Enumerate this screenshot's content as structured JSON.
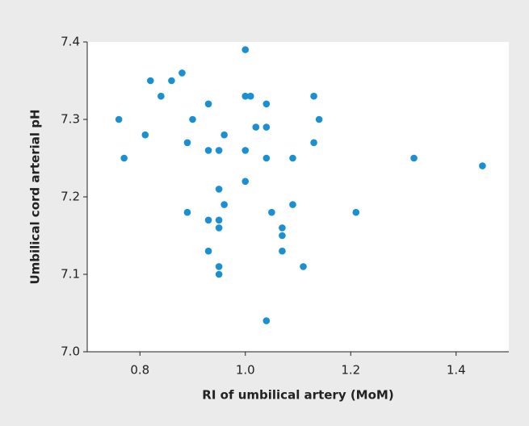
{
  "chart_data": {
    "type": "scatter",
    "x_label": "RI of umbilical artery (MoM)",
    "y_label": "Umbilical cord arterial pH",
    "color": "#1a8fd4",
    "x": [
      0.76,
      0.77,
      0.81,
      0.82,
      0.84,
      0.86,
      0.88,
      0.89,
      0.89,
      0.9,
      0.93,
      0.93,
      0.93,
      0.93,
      0.95,
      0.95,
      0.95,
      0.95,
      0.95,
      0.95,
      0.96,
      0.96,
      1.0,
      1.0,
      1.0,
      1.0,
      1.01,
      1.02,
      1.04,
      1.04,
      1.04,
      1.04,
      1.05,
      1.07,
      1.07,
      1.07,
      1.09,
      1.09,
      1.11,
      1.13,
      1.13,
      1.14,
      1.21,
      1.32,
      1.45
    ],
    "values": [
      7.3,
      7.25,
      7.28,
      7.35,
      7.33,
      7.35,
      7.36,
      7.27,
      7.18,
      7.3,
      7.32,
      7.26,
      7.17,
      7.13,
      7.26,
      7.21,
      7.17,
      7.16,
      7.11,
      7.1,
      7.28,
      7.19,
      7.39,
      7.33,
      7.26,
      7.22,
      7.33,
      7.29,
      7.32,
      7.29,
      7.25,
      7.04,
      7.18,
      7.16,
      7.15,
      7.13,
      7.25,
      7.19,
      7.11,
      7.33,
      7.27,
      7.3,
      7.18,
      7.25,
      7.24
    ],
    "xlim": [
      0.7,
      1.5
    ],
    "ylim": [
      7.0,
      7.4
    ],
    "xticks": [
      0.8,
      {
        "value": 1,
        "label": "1.0"
      },
      1.2,
      1.4
    ],
    "yticks": [
      {
        "value": 7,
        "label": "7.0"
      },
      7.1,
      7.2,
      7.3,
      7.4
    ]
  }
}
